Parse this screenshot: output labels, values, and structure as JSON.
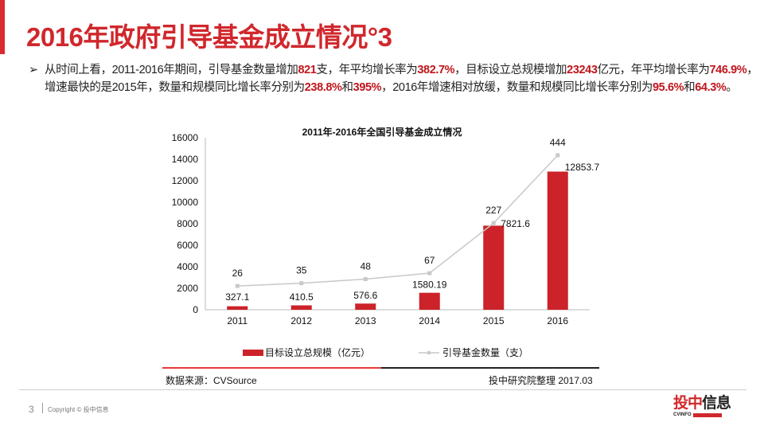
{
  "title": "2016年政府引导基金成立情况°3",
  "summary": {
    "segments": [
      {
        "t": "从时间上看，2011-2016年期间，引导基金数量增加",
        "h": false
      },
      {
        "t": "821",
        "h": true
      },
      {
        "t": "支，年平均增长率为",
        "h": false
      },
      {
        "t": "382.7%",
        "h": true
      },
      {
        "t": "，目标设立总规模增加",
        "h": false
      },
      {
        "t": "23243",
        "h": true
      },
      {
        "t": "亿元，年平均增长率为",
        "h": false
      },
      {
        "t": "746.9%",
        "h": true
      },
      {
        "t": "，增速最快的是2015年，数量和规模同比增长率分别为",
        "h": false
      },
      {
        "t": "238.8%",
        "h": true
      },
      {
        "t": "和",
        "h": false
      },
      {
        "t": "395%",
        "h": true
      },
      {
        "t": "，2016年增速相对放缓，数量和规模同比增长率分别为",
        "h": false
      },
      {
        "t": "95.6%",
        "h": true
      },
      {
        "t": "和",
        "h": false
      },
      {
        "t": "64.3%",
        "h": true
      },
      {
        "t": "。",
        "h": false
      }
    ]
  },
  "chart_data": {
    "type": "bar",
    "title": "2011年-2016年全国引导基金成立情况",
    "categories": [
      "2011",
      "2012",
      "2013",
      "2014",
      "2015",
      "2016"
    ],
    "yticks": [
      "0",
      "2000",
      "4000",
      "6000",
      "8000",
      "10000",
      "12000",
      "14000",
      "16000"
    ],
    "ylim": [
      0,
      16000
    ],
    "y2lim": [
      -50,
      500
    ],
    "series": [
      {
        "name": "目标设立总规模（亿元）",
        "kind": "bar",
        "color": "#cc2229",
        "values": [
          327.1,
          410.5,
          576.6,
          1580.19,
          7821.6,
          12853.7
        ],
        "labels": [
          "327.1",
          "410.5",
          "576.6",
          "1580.19",
          "7821.6",
          "12853.7"
        ]
      },
      {
        "name": "引导基金数量（支）",
        "kind": "line",
        "axis": "secondary",
        "color": "#c8c8c8",
        "values": [
          26,
          35,
          48,
          67,
          227,
          444
        ],
        "labels": [
          "26",
          "35",
          "48",
          "67",
          "227",
          "444"
        ]
      }
    ]
  },
  "source": {
    "left": "数据来源：CVSource",
    "right": "投中研究院整理 2017.03"
  },
  "footer": {
    "page": "3",
    "copyright": "Copyright © 投中信息"
  },
  "logo": {
    "text_red": "投中",
    "text_dark": "信息",
    "sub": "CVINFO"
  }
}
